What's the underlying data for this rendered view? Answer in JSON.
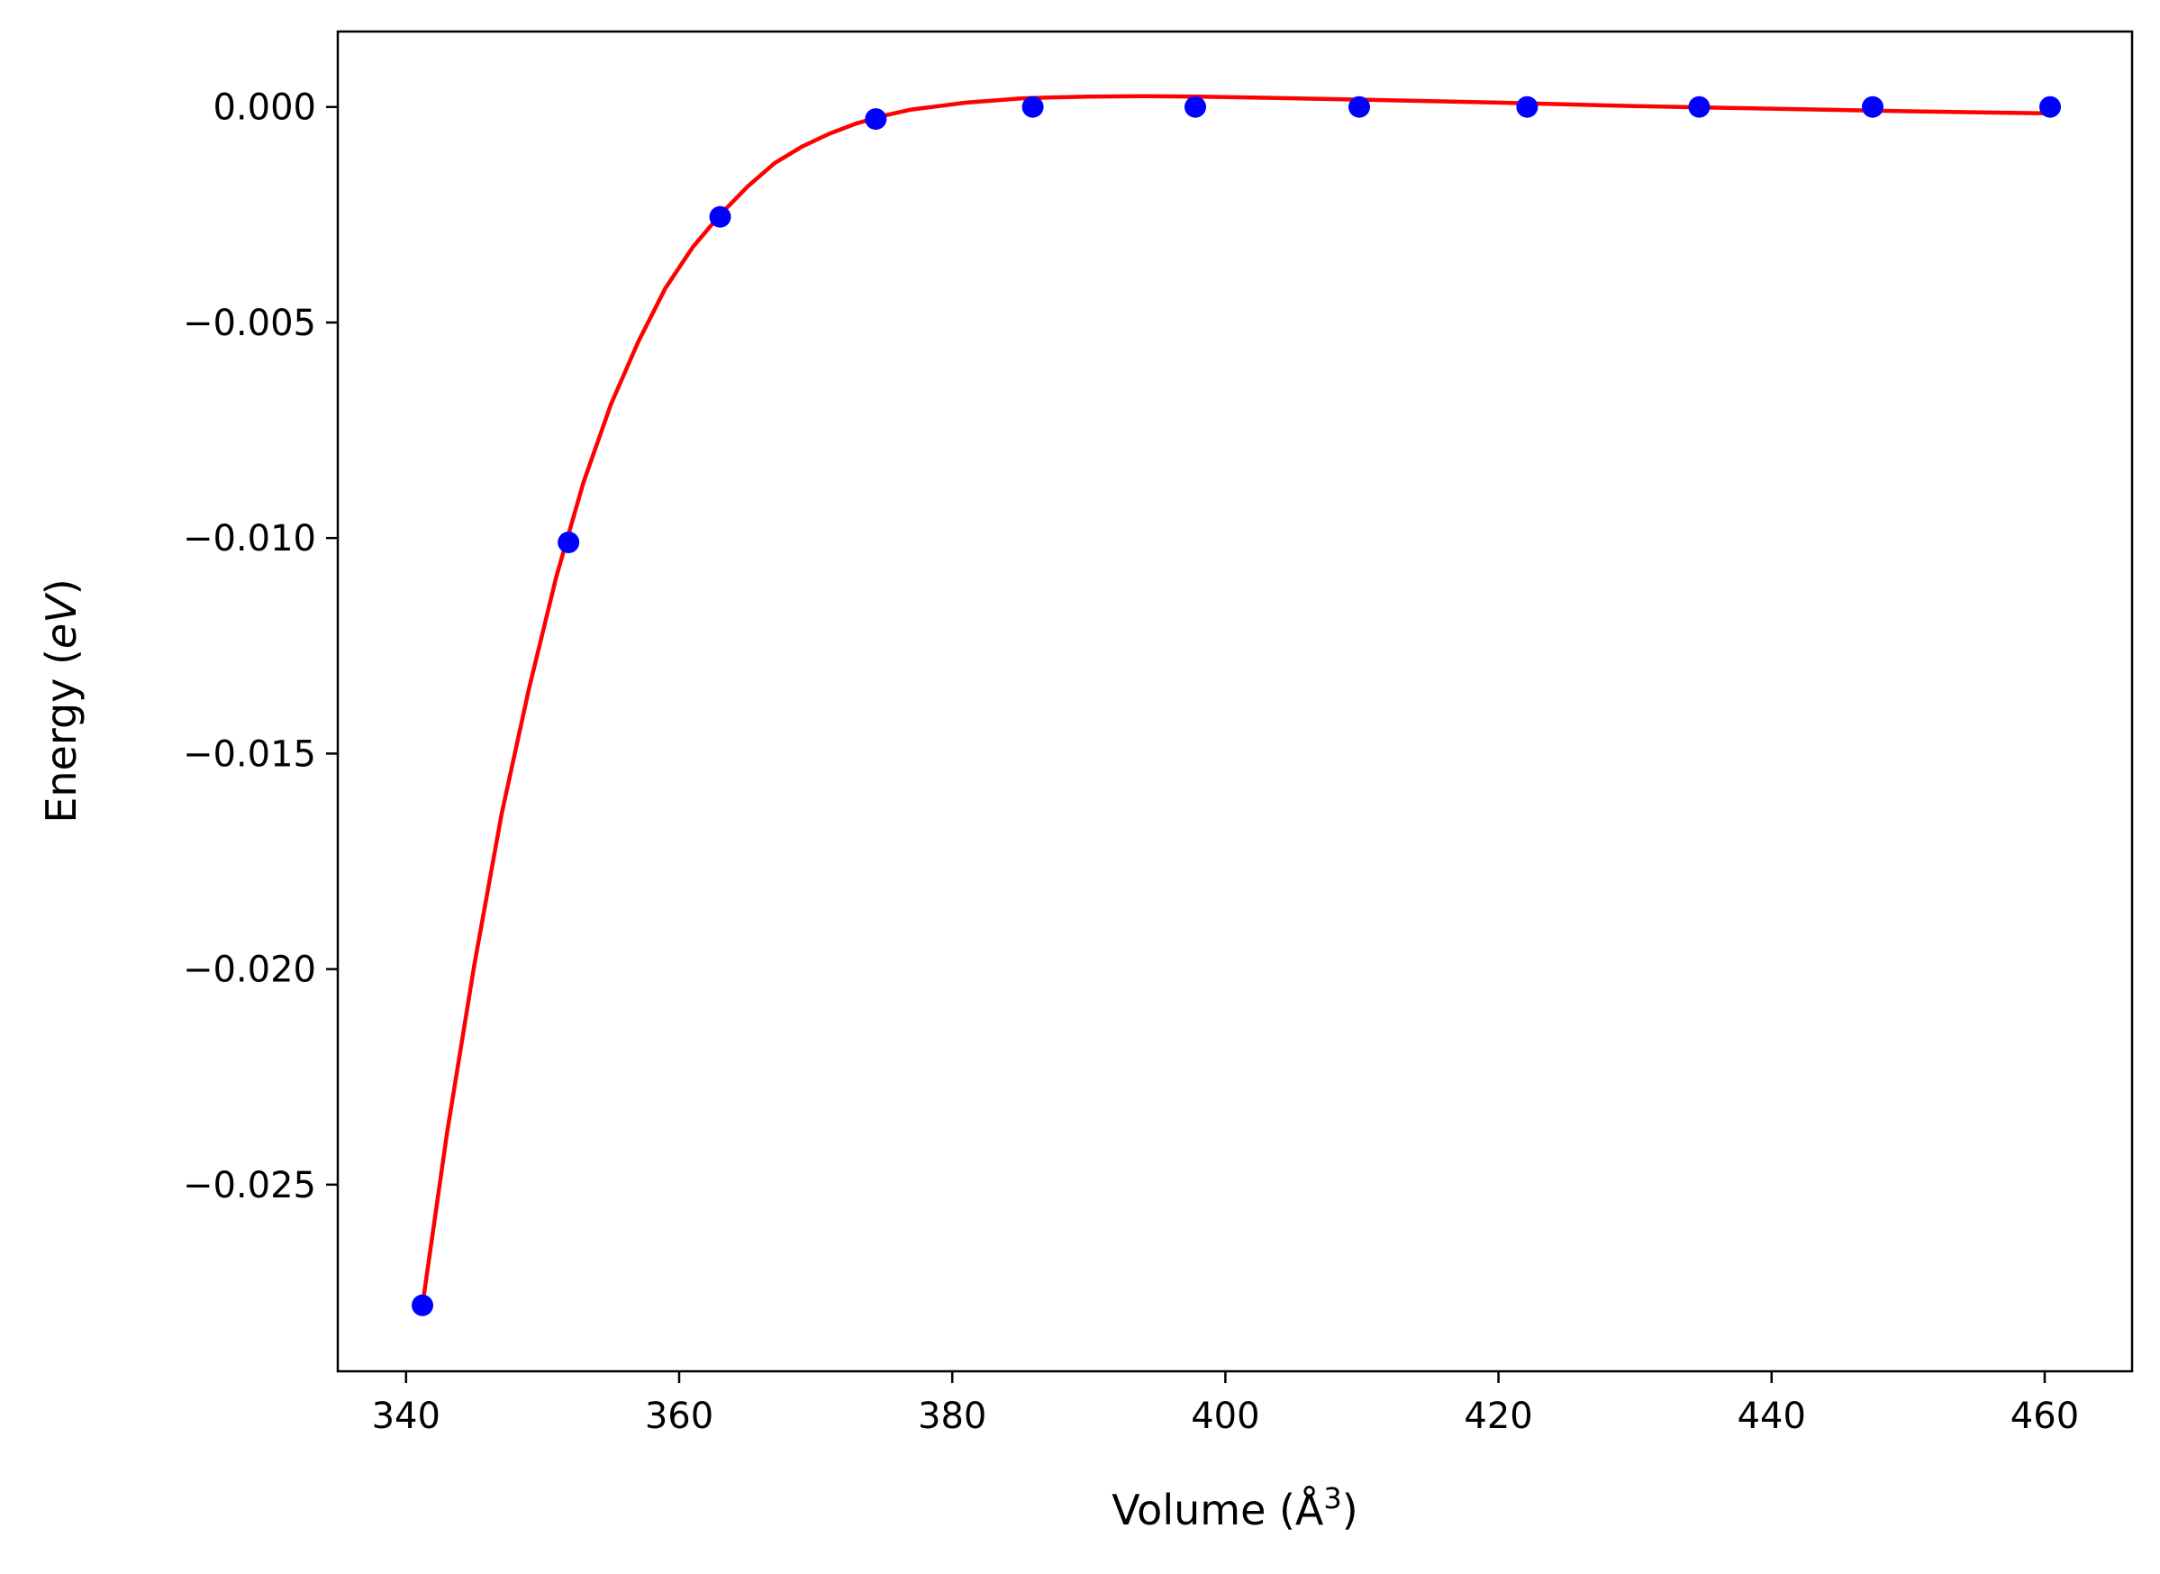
{
  "chart_data": {
    "type": "scatter",
    "xlabel": "Volume (Å",
    "xlabel_sup": "3",
    "xlabel_close": ")",
    "ylabel": "Energy (eV)",
    "ylabel_prefix": "Energy (",
    "ylabel_unit": "eV",
    "ylabel_suffix": ")",
    "xlim": [
      335.0,
      466.4
    ],
    "ylim": [
      -0.02933,
      0.00175
    ],
    "x_ticks": [
      340,
      360,
      380,
      400,
      420,
      440,
      460
    ],
    "x_tick_labels": [
      "340",
      "360",
      "380",
      "400",
      "420",
      "440",
      "460"
    ],
    "y_ticks": [
      0.0,
      -0.005,
      -0.01,
      -0.015,
      -0.02,
      -0.025
    ],
    "y_tick_labels": [
      "0.000",
      "−0.005",
      "−0.010",
      "−0.015",
      "−0.020",
      "−0.025"
    ],
    "grid": false,
    "legend": "none",
    "series": [
      {
        "kind": "points",
        "color": "#0000ff",
        "x": [
          341.2,
          351.9,
          363.0,
          374.4,
          385.9,
          397.8,
          409.8,
          422.1,
          434.7,
          447.4,
          460.4
        ],
        "y": [
          -0.0278,
          -0.0101,
          -0.00255,
          -0.00028,
          0.0,
          0.0,
          0.0,
          0.0,
          0.0,
          0.0,
          0.0
        ]
      },
      {
        "kind": "fit_curve",
        "color": "#ff0000",
        "x": [
          341.2,
          343.0,
          345.0,
          347.0,
          349.0,
          351.0,
          353.0,
          355.0,
          357.0,
          359.0,
          361.0,
          363.0,
          365.0,
          367.0,
          369.0,
          371.0,
          373.0,
          375.0,
          377.0,
          379.0,
          381.0,
          383.0,
          385.0,
          387.0,
          390.0,
          394.0,
          398.0,
          402.0,
          410.0,
          420.0,
          430.0,
          440.0,
          450.0,
          460.4
        ],
        "y": [
          -0.0278,
          -0.0238,
          -0.0199,
          -0.0164,
          -0.0135,
          -0.0109,
          -0.0087,
          -0.0069,
          -0.00545,
          -0.0042,
          -0.00325,
          -0.0025,
          -0.00185,
          -0.0013,
          -0.00092,
          -0.00062,
          -0.00038,
          -0.0002,
          -6e-05,
          2e-05,
          0.0001,
          0.00015,
          0.0002,
          0.00022,
          0.00024,
          0.00025,
          0.00024,
          0.00022,
          0.00017,
          0.0001,
          2e-05,
          -4e-05,
          -0.0001,
          -0.00015
        ]
      }
    ]
  }
}
